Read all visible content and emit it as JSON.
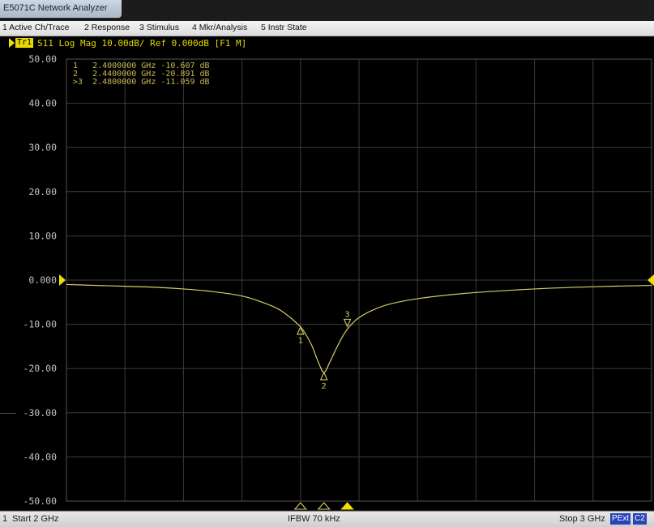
{
  "window": {
    "title": "E5071C Network Analyzer"
  },
  "menu": [
    {
      "label": "1 Active Ch/Trace"
    },
    {
      "label": "2 Response"
    },
    {
      "label": "3 Stimulus"
    },
    {
      "label": "4 Mkr/Analysis"
    },
    {
      "label": "5 Instr State"
    }
  ],
  "trace": {
    "id": "Tr1",
    "description": "S11 Log Mag 10.00dB/ Ref 0.000dB [F1 M]"
  },
  "status": {
    "channel": "1",
    "start": "Start 2 GHz",
    "ifbw": "IFBW 70 kHz",
    "stop": "Stop 3 GHz",
    "badge_pext": "PExt",
    "badge_c2": "C2"
  },
  "colors": {
    "trace": "#d8cc6a",
    "marker_text": "#c8b850",
    "grid": "#3b3b3b",
    "axis_label": "#c0c0c0",
    "yellow": "#f0e000"
  },
  "chart_data": {
    "type": "line",
    "ylim": [
      -50,
      50
    ],
    "xlim_ghz": [
      2.0,
      3.0
    ],
    "y_ticks": [
      "50.00",
      "40.00",
      "30.00",
      "20.00",
      "10.00",
      "0.000",
      "-10.00",
      "-20.00",
      "-30.00",
      "-40.00",
      "-50.00"
    ],
    "y_tick_values": [
      50,
      40,
      30,
      20,
      10,
      0,
      -10,
      -20,
      -30,
      -40,
      -50
    ],
    "grid": true,
    "series": [
      {
        "x": [
          2.0,
          2.05,
          2.1,
          2.15,
          2.2,
          2.25,
          2.3,
          2.33,
          2.36,
          2.38,
          2.4,
          2.41,
          2.42,
          2.43,
          2.44,
          2.45,
          2.46,
          2.47,
          2.48,
          2.49,
          2.5,
          2.52,
          2.55,
          2.6,
          2.65,
          2.7,
          2.8,
          2.9,
          3.0
        ],
        "y": [
          -1.0,
          -1.2,
          -1.4,
          -1.6,
          -2.0,
          -2.6,
          -3.6,
          -4.8,
          -6.4,
          -8.2,
          -10.6,
          -12.5,
          -15.0,
          -18.4,
          -20.9,
          -18.6,
          -15.8,
          -13.2,
          -11.1,
          -9.6,
          -8.5,
          -7.0,
          -5.5,
          -4.2,
          -3.4,
          -2.8,
          -2.0,
          -1.5,
          -1.2
        ]
      }
    ],
    "markers": [
      {
        "num": "1",
        "x": 2.4,
        "y": -10.607,
        "readout": "1   2.4000000 GHz -10.607 dB"
      },
      {
        "num": "2",
        "x": 2.44,
        "y": -20.891,
        "readout": "2   2.4400000 GHz -20.891 dB"
      },
      {
        "num": "3",
        "x": 2.48,
        "y": -11.059,
        "readout": ">3  2.4800000 GHz -11.059 dB"
      }
    ]
  }
}
